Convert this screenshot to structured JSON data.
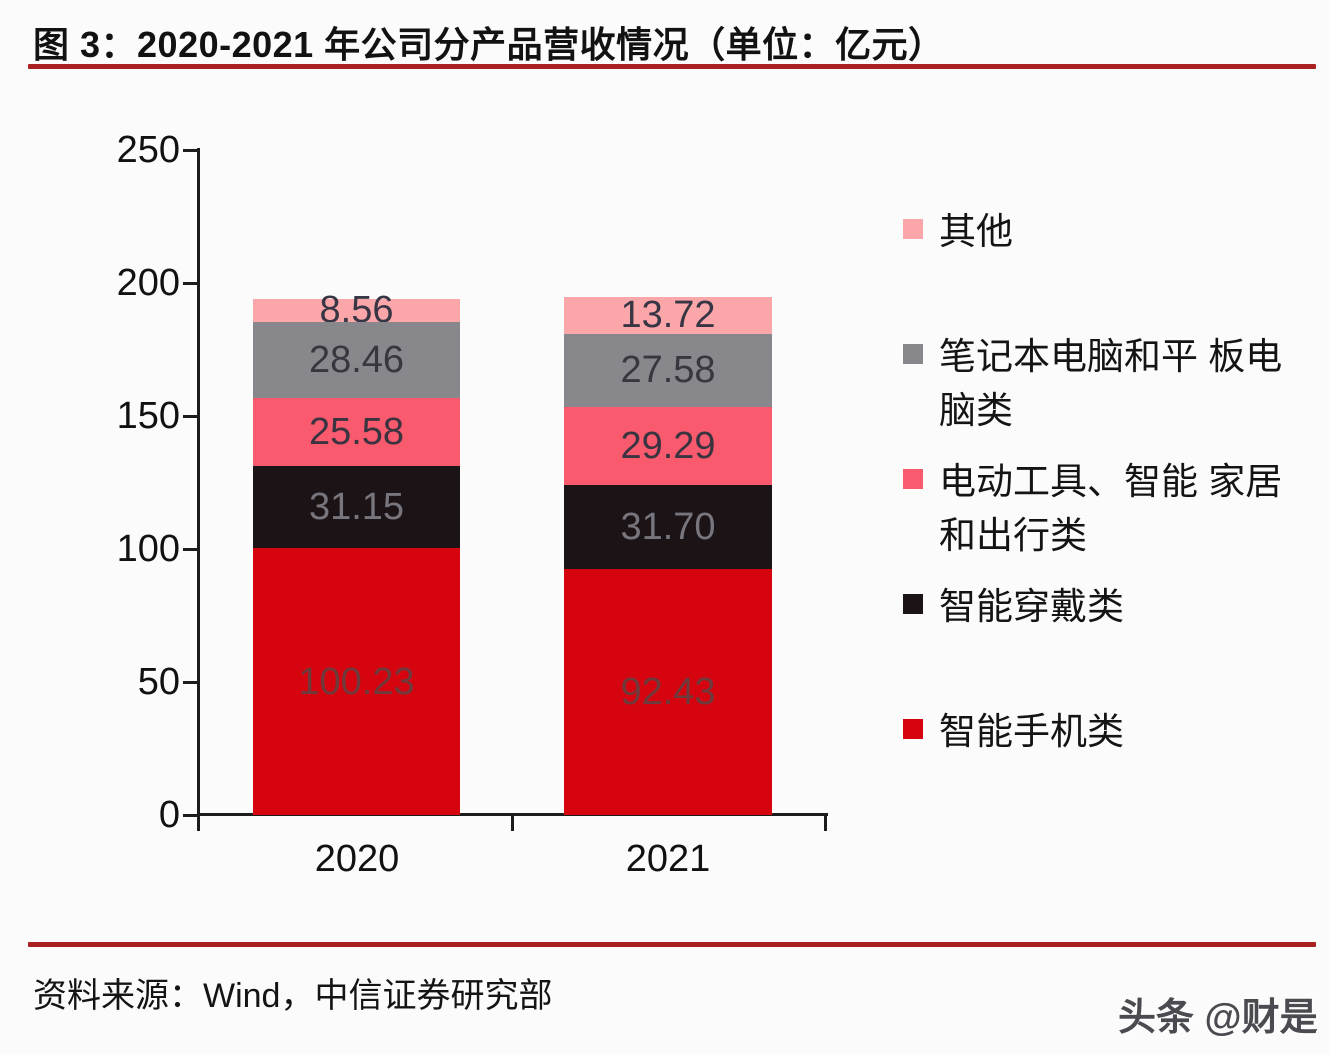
{
  "title": "图 3：2020-2021 年公司分产品营收情况（单位：亿元）",
  "source": "资料来源：Wind，中信证券研究部",
  "watermark": "头条 @财是",
  "colors": {
    "rule": "#a92123",
    "axis": "#1c1c1c",
    "background": "#fcfbfb"
  },
  "chart_data": {
    "type": "bar",
    "stacked": true,
    "title": "2020-2021 年公司分产品营收情况",
    "unit": "亿元",
    "categories": [
      "2020",
      "2021"
    ],
    "series": [
      {
        "name": "智能手机类",
        "color": "#d5040e",
        "label_color": "#6e3a3c",
        "values": [
          100.23,
          92.43
        ]
      },
      {
        "name": "智能穿戴类",
        "color": "#1c1316",
        "label_color": "#77757d",
        "values": [
          31.15,
          31.7
        ]
      },
      {
        "name": "电动工具、智能 家居和出行类",
        "color": "#f95a6d",
        "label_color": "#3a3440",
        "values": [
          25.58,
          29.29
        ]
      },
      {
        "name": "笔记本电脑和平 板电脑类",
        "color": "#88878c",
        "label_color": "#38373f",
        "values": [
          28.46,
          27.58
        ]
      },
      {
        "name": "其他",
        "color": "#fba7aa",
        "label_color": "#383644",
        "values": [
          8.56,
          13.72
        ]
      }
    ],
    "legend_order_top_to_bottom": [
      "其他",
      "笔记本电脑和平 板电脑类",
      "电动工具、智能 家居和出行类",
      "智能穿戴类",
      "智能手机类"
    ],
    "legend_position": "right",
    "xlabel": "",
    "ylabel": "",
    "ylim": [
      0,
      250
    ],
    "yticks": [
      0,
      50,
      100,
      150,
      200,
      250
    ],
    "grid": false
  }
}
